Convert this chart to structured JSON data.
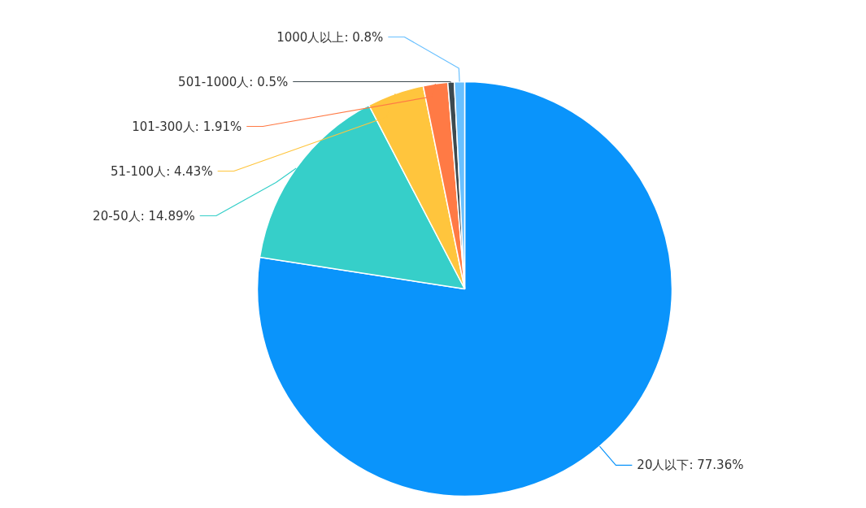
{
  "chart_data": {
    "type": "pie",
    "categories": [
      "20人以下",
      "20-50人",
      "51-100人",
      "101-300人",
      "501-1000人",
      "1000人以上"
    ],
    "values": [
      77.36,
      14.89,
      4.43,
      1.91,
      0.5,
      0.8
    ],
    "value_labels": [
      "77.36%",
      "14.89%",
      "4.43%",
      "1.91%",
      "0.5%",
      "0.8%"
    ],
    "colors": [
      "#0a94fb",
      "#36cfc9",
      "#ffc53d",
      "#ff7a45",
      "#3d4a4f",
      "#69c0ff"
    ]
  }
}
